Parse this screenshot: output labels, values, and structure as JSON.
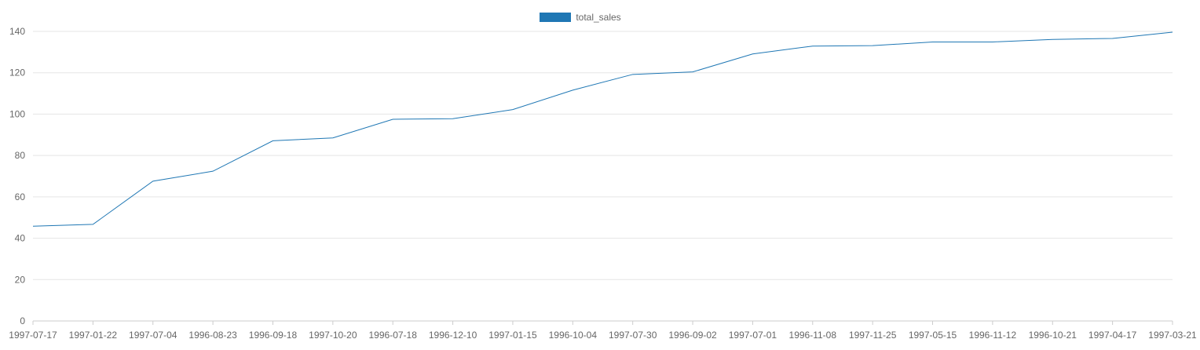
{
  "chart_data": {
    "type": "line",
    "title": "",
    "xlabel": "",
    "ylabel": "",
    "categories": [
      "1997-07-17",
      "1997-01-22",
      "1997-07-04",
      "1996-08-23",
      "1996-09-18",
      "1997-10-20",
      "1996-07-18",
      "1996-12-10",
      "1997-01-15",
      "1996-10-04",
      "1997-07-30",
      "1996-09-02",
      "1997-07-01",
      "1996-11-08",
      "1997-11-25",
      "1997-05-15",
      "1996-11-12",
      "1996-10-21",
      "1997-04-17",
      "1997-03-21"
    ],
    "series": [
      {
        "name": "total_sales",
        "color": "#1f77b4",
        "values": [
          45.8,
          46.7,
          67.6,
          72.4,
          87.1,
          88.5,
          97.5,
          97.8,
          102.2,
          111.6,
          119.2,
          120.4,
          129.1,
          132.9,
          133.1,
          134.9,
          134.9,
          136.1,
          136.6,
          139.6
        ]
      }
    ],
    "ylim": [
      0,
      140
    ],
    "yticks": [
      0,
      20,
      40,
      60,
      80,
      100,
      120,
      140
    ],
    "grid": true,
    "legend_position": "top-center"
  }
}
